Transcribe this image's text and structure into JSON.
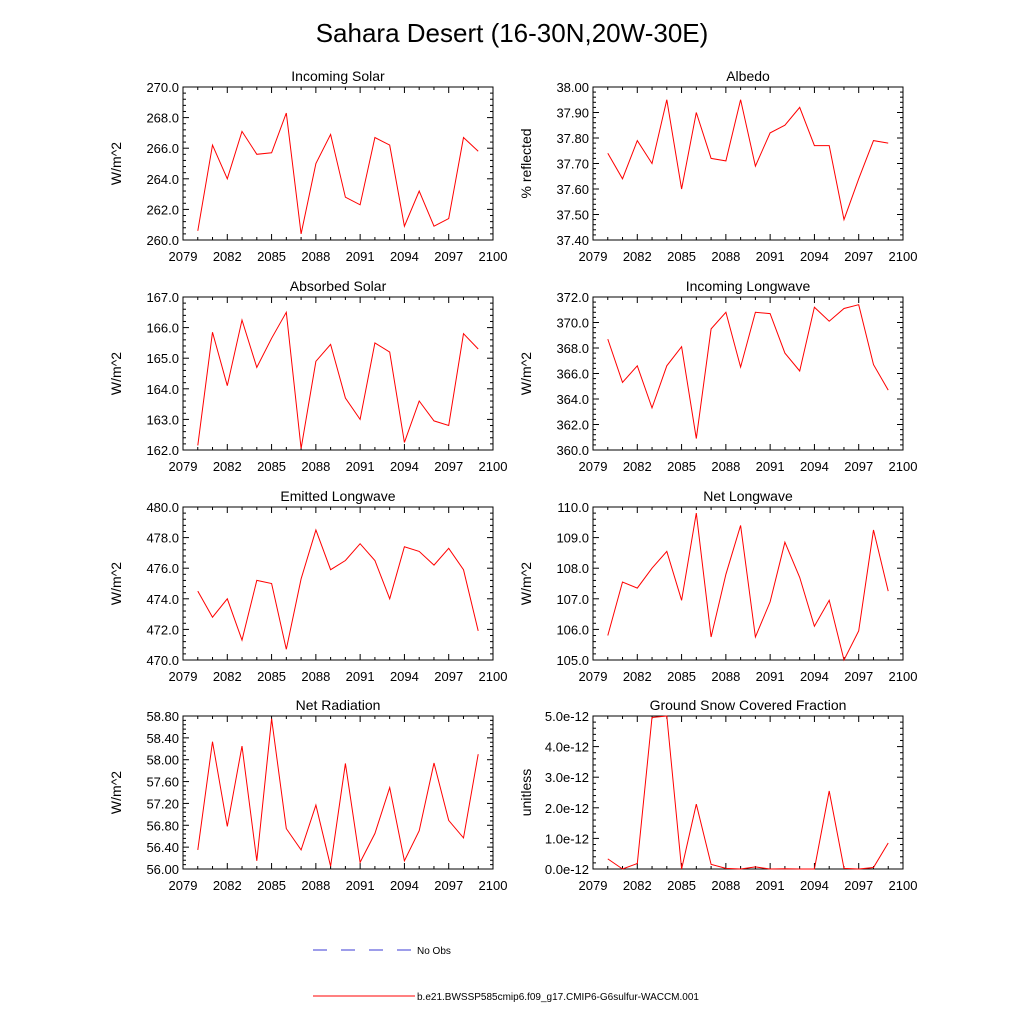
{
  "title": "Sahara Desert (16-30N,20W-30E)",
  "legend": {
    "obs_label": "No Obs",
    "model_label": "b.e21.BWSSP585cmip6.f09_g17.CMIP6-G6sulfur-WACCM.001",
    "obs_color": "#3b3bd6",
    "model_color": "#ff0000"
  },
  "chart_data": [
    {
      "type": "line",
      "title": "Incoming Solar",
      "ylabel": "W/m^2",
      "xlabel": "",
      "xlim": [
        2079,
        2100
      ],
      "ylim": [
        260.0,
        270.0
      ],
      "xticks": [
        2079,
        2082,
        2085,
        2088,
        2091,
        2094,
        2097,
        2100
      ],
      "yticks": [
        "260.0",
        "262.0",
        "264.0",
        "266.0",
        "268.0",
        "270.0"
      ],
      "series": [
        {
          "x": [
            2080,
            2081,
            2082,
            2083,
            2084,
            2085,
            2086,
            2087,
            2088,
            2089,
            2090,
            2091,
            2092,
            2093,
            2094,
            2095,
            2096,
            2097,
            2098,
            2099
          ],
          "values": [
            260.6,
            266.2,
            264.0,
            267.1,
            265.6,
            265.7,
            268.3,
            260.4,
            265.0,
            266.9,
            262.8,
            262.3,
            266.7,
            266.2,
            260.9,
            263.2,
            260.9,
            261.4,
            266.7,
            265.8
          ]
        }
      ]
    },
    {
      "type": "line",
      "title": "Albedo",
      "ylabel": "% reflected",
      "xlabel": "",
      "xlim": [
        2079,
        2100
      ],
      "ylim": [
        37.4,
        38.0
      ],
      "xticks": [
        2079,
        2082,
        2085,
        2088,
        2091,
        2094,
        2097,
        2100
      ],
      "yticks": [
        "37.40",
        "37.50",
        "37.60",
        "37.70",
        "37.80",
        "37.90",
        "38.00"
      ],
      "series": [
        {
          "x": [
            2080,
            2081,
            2082,
            2083,
            2084,
            2085,
            2086,
            2087,
            2088,
            2089,
            2090,
            2091,
            2092,
            2093,
            2094,
            2095,
            2096,
            2097,
            2098,
            2099
          ],
          "values": [
            37.74,
            37.64,
            37.79,
            37.7,
            37.95,
            37.6,
            37.9,
            37.72,
            37.71,
            37.95,
            37.69,
            37.82,
            37.85,
            37.92,
            37.77,
            37.77,
            37.48,
            37.64,
            37.79,
            37.78
          ]
        }
      ]
    },
    {
      "type": "line",
      "title": "Absorbed Solar",
      "ylabel": "W/m^2",
      "xlabel": "",
      "xlim": [
        2079,
        2100
      ],
      "ylim": [
        162.0,
        167.0
      ],
      "xticks": [
        2079,
        2082,
        2085,
        2088,
        2091,
        2094,
        2097,
        2100
      ],
      "yticks": [
        "162.0",
        "163.0",
        "164.0",
        "165.0",
        "166.0",
        "167.0"
      ],
      "series": [
        {
          "x": [
            2080,
            2081,
            2082,
            2083,
            2084,
            2085,
            2086,
            2087,
            2088,
            2089,
            2090,
            2091,
            2092,
            2093,
            2094,
            2095,
            2096,
            2097,
            2098,
            2099
          ],
          "values": [
            162.15,
            165.85,
            164.1,
            166.25,
            164.7,
            165.65,
            166.5,
            162.05,
            164.9,
            165.45,
            163.7,
            163.0,
            165.5,
            165.2,
            162.25,
            163.6,
            162.95,
            162.8,
            165.8,
            165.3
          ]
        }
      ]
    },
    {
      "type": "line",
      "title": "Incoming Longwave",
      "ylabel": "W/m^2",
      "xlabel": "",
      "xlim": [
        2079,
        2100
      ],
      "ylim": [
        360.0,
        372.0
      ],
      "xticks": [
        2079,
        2082,
        2085,
        2088,
        2091,
        2094,
        2097,
        2100
      ],
      "yticks": [
        "360.0",
        "362.0",
        "364.0",
        "366.0",
        "368.0",
        "370.0",
        "372.0"
      ],
      "series": [
        {
          "x": [
            2080,
            2081,
            2082,
            2083,
            2084,
            2085,
            2086,
            2087,
            2088,
            2089,
            2090,
            2091,
            2092,
            2093,
            2094,
            2095,
            2096,
            2097,
            2098,
            2099
          ],
          "values": [
            368.7,
            365.3,
            366.6,
            363.3,
            366.6,
            368.1,
            360.9,
            369.5,
            370.8,
            366.5,
            370.8,
            370.7,
            367.6,
            366.2,
            371.2,
            370.1,
            371.1,
            371.4,
            366.7,
            364.7
          ]
        }
      ]
    },
    {
      "type": "line",
      "title": "Emitted Longwave",
      "ylabel": "W/m^2",
      "xlabel": "",
      "xlim": [
        2079,
        2100
      ],
      "ylim": [
        470.0,
        480.0
      ],
      "xticks": [
        2079,
        2082,
        2085,
        2088,
        2091,
        2094,
        2097,
        2100
      ],
      "yticks": [
        "470.0",
        "472.0",
        "474.0",
        "476.0",
        "478.0",
        "480.0"
      ],
      "series": [
        {
          "x": [
            2080,
            2081,
            2082,
            2083,
            2084,
            2085,
            2086,
            2087,
            2088,
            2089,
            2090,
            2091,
            2092,
            2093,
            2094,
            2095,
            2096,
            2097,
            2098,
            2099
          ],
          "values": [
            474.5,
            472.8,
            474.0,
            471.3,
            475.2,
            475.0,
            470.7,
            475.3,
            478.5,
            475.9,
            476.5,
            477.6,
            476.5,
            474.0,
            477.4,
            477.1,
            476.2,
            477.3,
            475.9,
            471.9
          ]
        }
      ]
    },
    {
      "type": "line",
      "title": "Net Longwave",
      "ylabel": "W/m^2",
      "xlabel": "",
      "xlim": [
        2079,
        2100
      ],
      "ylim": [
        105.0,
        110.0
      ],
      "xticks": [
        2079,
        2082,
        2085,
        2088,
        2091,
        2094,
        2097,
        2100
      ],
      "yticks": [
        "105.0",
        "106.0",
        "107.0",
        "108.0",
        "109.0",
        "110.0"
      ],
      "series": [
        {
          "x": [
            2080,
            2081,
            2082,
            2083,
            2084,
            2085,
            2086,
            2087,
            2088,
            2089,
            2090,
            2091,
            2092,
            2093,
            2094,
            2095,
            2096,
            2097,
            2098,
            2099
          ],
          "values": [
            105.8,
            107.55,
            107.35,
            108.0,
            108.55,
            106.95,
            109.8,
            105.75,
            107.8,
            109.4,
            105.75,
            106.9,
            108.85,
            107.7,
            106.1,
            106.95,
            105.0,
            105.95,
            109.25,
            107.25
          ]
        }
      ]
    },
    {
      "type": "line",
      "title": "Net Radiation",
      "ylabel": "W/m^2",
      "xlabel": "",
      "xlim": [
        2079,
        2100
      ],
      "ylim": [
        56.0,
        58.8
      ],
      "xticks": [
        2079,
        2082,
        2085,
        2088,
        2091,
        2094,
        2097,
        2100
      ],
      "yticks": [
        "56.00",
        "56.40",
        "56.80",
        "57.20",
        "57.60",
        "58.00",
        "58.40",
        "58.80"
      ],
      "series": [
        {
          "x": [
            2080,
            2081,
            2082,
            2083,
            2084,
            2085,
            2086,
            2087,
            2088,
            2089,
            2090,
            2091,
            2092,
            2093,
            2094,
            2095,
            2096,
            2097,
            2098,
            2099
          ],
          "values": [
            56.35,
            58.33,
            56.78,
            58.25,
            56.15,
            58.75,
            56.74,
            56.35,
            57.17,
            56.05,
            57.93,
            56.12,
            56.65,
            57.49,
            56.15,
            56.7,
            57.94,
            56.89,
            56.57,
            58.1
          ]
        }
      ]
    },
    {
      "type": "line",
      "title": "Ground Snow Covered Fraction",
      "ylabel": "unitless",
      "xlabel": "",
      "xlim": [
        2079,
        2100
      ],
      "ylim": [
        0,
        5e-12
      ],
      "xticks": [
        2079,
        2082,
        2085,
        2088,
        2091,
        2094,
        2097,
        2100
      ],
      "yticks": [
        "0.0e-12",
        "1.0e-12",
        "2.0e-12",
        "3.0e-12",
        "4.0e-12",
        "5.0e-12"
      ],
      "series": [
        {
          "x": [
            2080,
            2081,
            2082,
            2083,
            2084,
            2085,
            2086,
            2087,
            2088,
            2089,
            2090,
            2091,
            2092,
            2093,
            2094,
            2095,
            2096,
            2097,
            2098,
            2099
          ],
          "values": [
            3.3e-13,
            0.0,
            1.8e-13,
            4.95e-12,
            5e-12,
            0.0,
            2.12e-12,
            1.5e-13,
            2e-14,
            0.0,
            7e-14,
            0.0,
            1e-14,
            0.0,
            0.0,
            2.55e-12,
            2e-14,
            0.0,
            5e-14,
            8.5e-13
          ]
        }
      ]
    }
  ]
}
